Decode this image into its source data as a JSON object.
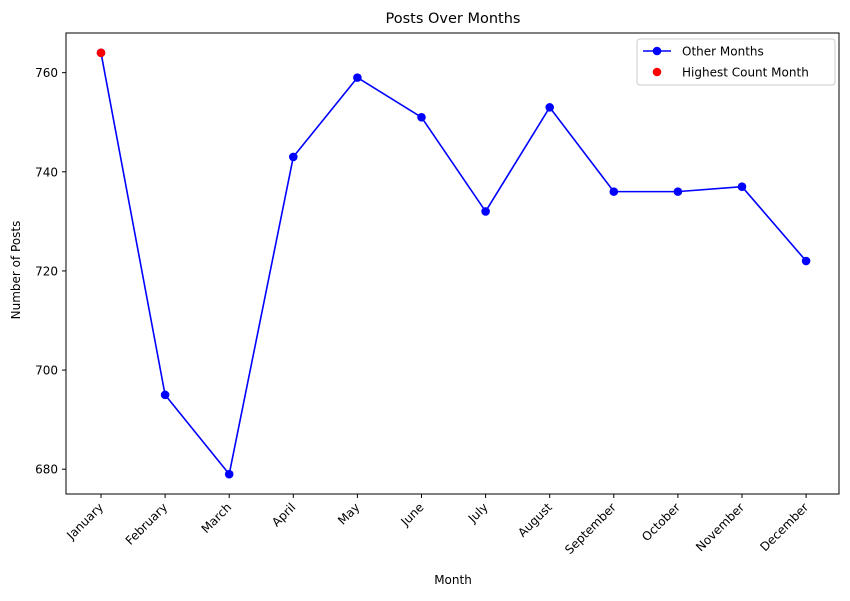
{
  "chart_data": {
    "type": "line",
    "title": "Posts Over Months",
    "xlabel": "Month",
    "ylabel": "Number of Posts",
    "categories": [
      "January",
      "February",
      "March",
      "April",
      "May",
      "June",
      "July",
      "August",
      "September",
      "October",
      "November",
      "December"
    ],
    "series": [
      {
        "name": "Other Months",
        "values": [
          764,
          695,
          679,
          743,
          759,
          751,
          732,
          753,
          736,
          736,
          737,
          722
        ],
        "color": "#0000ff",
        "marker": "circle",
        "line": true
      }
    ],
    "highlight": {
      "name": "Highest Count Month",
      "category": "January",
      "value": 764,
      "color": "#ff0000",
      "marker": "circle",
      "line": false
    },
    "ylim": [
      675,
      768
    ],
    "yticks": [
      680,
      700,
      720,
      740,
      760
    ],
    "grid": false,
    "legend_position": "top-right"
  }
}
